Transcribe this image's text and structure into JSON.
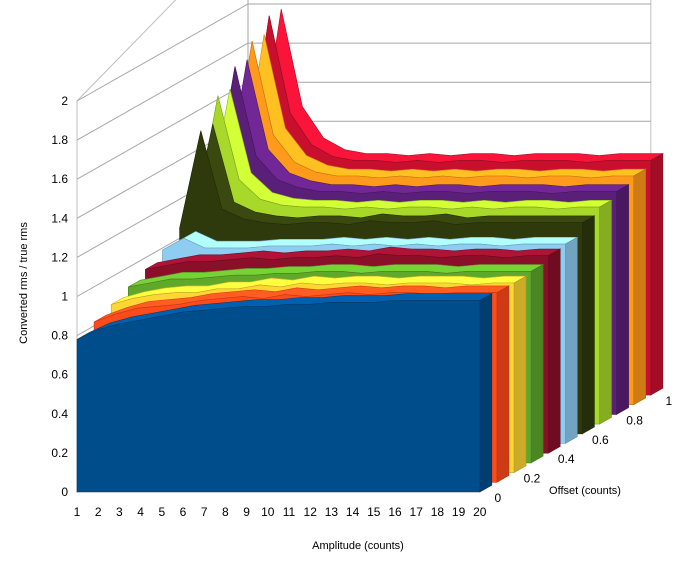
{
  "chart_data": {
    "type": "area",
    "subtype": "3d-surface-series",
    "title": "",
    "xlabel": "Amplitude (counts)",
    "ylabel": "Converted rms / true rms",
    "zlabel": "Offset (counts)",
    "categories": [
      "1",
      "2",
      "3",
      "4",
      "5",
      "6",
      "7",
      "8",
      "9",
      "10",
      "11",
      "12",
      "13",
      "14",
      "15",
      "16",
      "17",
      "18",
      "19",
      "20"
    ],
    "ylim": [
      0,
      2
    ],
    "yticks": [
      "0",
      "0.2",
      "0.4",
      "0.6",
      "0.8",
      "1",
      "1.2",
      "1.4",
      "1.6",
      "1.8",
      "2"
    ],
    "zticks": [
      "0",
      "0.2",
      "0.4",
      "0.6",
      "0.8",
      "1"
    ],
    "grid": true,
    "legend": "none",
    "series": [
      {
        "offset": 0.0,
        "color": "#004d8c",
        "values": [
          0.78,
          0.83,
          0.86,
          0.88,
          0.9,
          0.92,
          0.93,
          0.94,
          0.95,
          0.95,
          0.96,
          0.96,
          0.97,
          0.97,
          0.97,
          0.98,
          0.98,
          0.98,
          0.98,
          0.98
        ]
      },
      {
        "offset": 0.1,
        "color": "#ff4a1a",
        "values": [
          0.82,
          0.86,
          0.89,
          0.9,
          0.91,
          0.93,
          0.94,
          0.95,
          0.94,
          0.96,
          0.95,
          0.96,
          0.97,
          0.96,
          0.97,
          0.97,
          0.96,
          0.97,
          0.97,
          0.97
        ]
      },
      {
        "offset": 0.2,
        "color": "#ffd633",
        "values": [
          0.86,
          0.89,
          0.91,
          0.92,
          0.92,
          0.94,
          0.94,
          0.96,
          0.95,
          0.97,
          0.96,
          0.97,
          0.97,
          0.96,
          0.97,
          0.97,
          0.97,
          0.96,
          0.97,
          0.97
        ]
      },
      {
        "offset": 0.3,
        "color": "#5fa82a",
        "values": [
          0.9,
          0.92,
          0.94,
          0.94,
          0.95,
          0.96,
          0.96,
          0.97,
          0.97,
          0.98,
          0.98,
          0.97,
          0.98,
          0.98,
          0.98,
          0.97,
          0.98,
          0.98,
          0.98,
          0.98
        ]
      },
      {
        "offset": 0.4,
        "color": "#8c0f2a",
        "values": [
          0.94,
          0.96,
          0.98,
          0.98,
          0.99,
          1.0,
          0.99,
          1.0,
          1.0,
          1.01,
          1.0,
          1.02,
          1.01,
          1.01,
          1.0,
          1.01,
          1.01,
          1.0,
          1.01,
          1.01
        ]
      },
      {
        "offset": 0.5,
        "color": "#8ecdf2",
        "values": [
          0.99,
          1.05,
          1.0,
          1.0,
          1.0,
          1.01,
          1.01,
          1.01,
          1.02,
          1.01,
          1.02,
          1.01,
          1.02,
          1.01,
          1.02,
          1.02,
          1.01,
          1.02,
          1.02,
          1.02
        ]
      },
      {
        "offset": 0.6,
        "color": "#2e3a0c",
        "values": [
          1.05,
          1.55,
          1.15,
          1.1,
          1.08,
          1.07,
          1.08,
          1.08,
          1.07,
          1.09,
          1.08,
          1.08,
          1.09,
          1.07,
          1.08,
          1.08,
          1.08,
          1.08,
          1.08,
          1.08
        ]
      },
      {
        "offset": 0.7,
        "color": "#a8d82a",
        "values": [
          1.1,
          1.68,
          1.25,
          1.15,
          1.12,
          1.11,
          1.11,
          1.1,
          1.11,
          1.1,
          1.11,
          1.11,
          1.1,
          1.11,
          1.1,
          1.11,
          1.11,
          1.1,
          1.11,
          1.11
        ]
      },
      {
        "offset": 0.8,
        "color": "#5a1f78",
        "values": [
          1.14,
          1.78,
          1.32,
          1.2,
          1.16,
          1.14,
          1.14,
          1.13,
          1.14,
          1.13,
          1.14,
          1.14,
          1.13,
          1.14,
          1.14,
          1.14,
          1.13,
          1.14,
          1.14,
          1.14
        ]
      },
      {
        "offset": 0.9,
        "color": "#ff9a1a",
        "values": [
          1.18,
          1.86,
          1.38,
          1.24,
          1.19,
          1.17,
          1.17,
          1.16,
          1.17,
          1.16,
          1.17,
          1.16,
          1.17,
          1.17,
          1.16,
          1.17,
          1.17,
          1.16,
          1.17,
          1.17
        ]
      },
      {
        "offset": 1.0,
        "color": "#c8102e",
        "values": [
          1.22,
          1.94,
          1.44,
          1.28,
          1.22,
          1.2,
          1.2,
          1.19,
          1.2,
          1.19,
          1.2,
          1.2,
          1.19,
          1.2,
          1.2,
          1.2,
          1.19,
          1.2,
          1.2,
          1.2
        ]
      }
    ]
  }
}
